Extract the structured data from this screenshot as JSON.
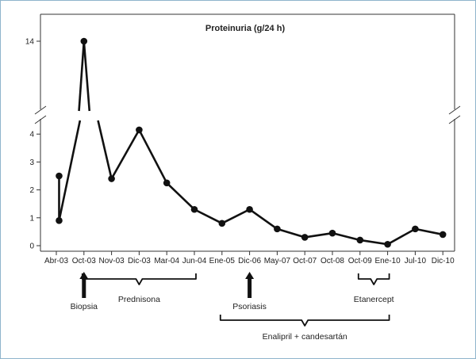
{
  "chart_data": {
    "type": "line",
    "title": "Proteinuria (g/24 h)",
    "xlabel": "",
    "ylabel": "",
    "x_tick_labels": [
      "Abr-03",
      "Oct-03",
      "Nov-03",
      "Dic-03",
      "Mar-04",
      "Jun-04",
      "Ene-05",
      "Dic-06",
      "May-07",
      "Oct-07",
      "Oct-08",
      "Oct-09",
      "Ene-10",
      "Jul-10",
      "Dic-10"
    ],
    "y_ticks": [
      0,
      1,
      2,
      3,
      4,
      14
    ],
    "y_axis_break": [
      4.3,
      13.5
    ],
    "grid": false,
    "points": [
      {
        "x": 0.1,
        "y": 2.5
      },
      {
        "x": 0.1,
        "y": 0.9
      },
      {
        "x": 1.0,
        "y": 14.0
      },
      {
        "x": 2.0,
        "y": 2.4
      },
      {
        "x": 3.0,
        "y": 4.15
      },
      {
        "x": 4.0,
        "y": 2.25
      },
      {
        "x": 5.0,
        "y": 1.3
      },
      {
        "x": 6.0,
        "y": 0.8
      },
      {
        "x": 7.0,
        "y": 1.3
      },
      {
        "x": 8.0,
        "y": 0.6
      },
      {
        "x": 9.0,
        "y": 0.3
      },
      {
        "x": 10.0,
        "y": 0.45
      },
      {
        "x": 11.0,
        "y": 0.2
      },
      {
        "x": 12.0,
        "y": 0.05
      },
      {
        "x": 13.0,
        "y": 0.6
      },
      {
        "x": 14.0,
        "y": 0.4
      }
    ],
    "annotations": [
      {
        "label": "Biopsia",
        "type": "arrow",
        "at": 1.0
      },
      {
        "label": "Prednisona",
        "type": "brace",
        "from": 1.0,
        "to": 5.0
      },
      {
        "label": "Psoriasis",
        "type": "arrow",
        "at": 7.0
      },
      {
        "label": "Etanercept",
        "type": "brace",
        "from": 11.0,
        "to": 12.0
      },
      {
        "label": "Enalipril + candesartán",
        "type": "brace",
        "from": 6.0,
        "to": 12.0
      }
    ]
  }
}
